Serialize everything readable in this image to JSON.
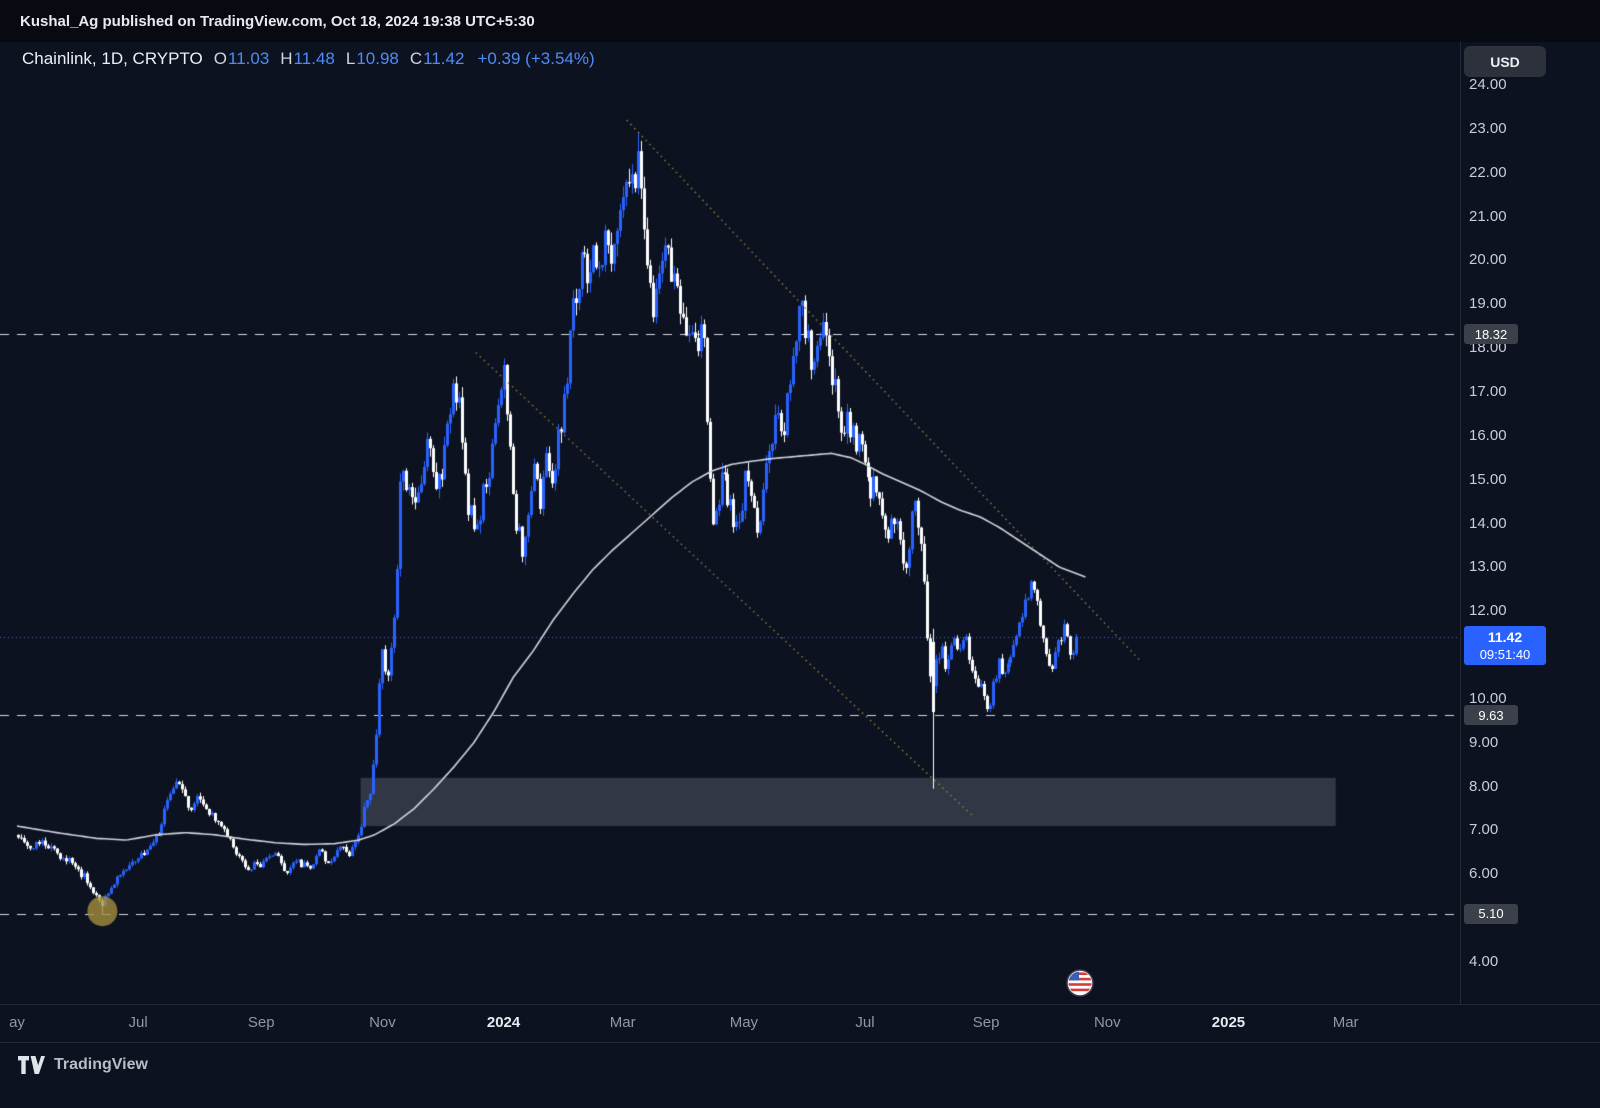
{
  "publish_bar": {
    "text": "Kushal_Ag published on TradingView.com, Oct 18, 2024 19:38 UTC+5:30"
  },
  "header": {
    "symbol": "Chainlink, 1D, CRYPTO",
    "ohlc": [
      {
        "label": "O",
        "value": "11.03"
      },
      {
        "label": "H",
        "value": "11.48"
      },
      {
        "label": "L",
        "value": "10.98"
      },
      {
        "label": "C",
        "value": "11.42"
      }
    ],
    "change": "+0.39 (+3.54%)"
  },
  "axis": {
    "currency_button": "USD",
    "price_ticks": [
      {
        "value": 24,
        "label": "24.00"
      },
      {
        "value": 23,
        "label": "23.00"
      },
      {
        "value": 22,
        "label": "22.00"
      },
      {
        "value": 21,
        "label": "21.00"
      },
      {
        "value": 20,
        "label": "20.00"
      },
      {
        "value": 19,
        "label": "19.00"
      },
      {
        "value": 18,
        "label": "18.00"
      },
      {
        "value": 17,
        "label": "17.00"
      },
      {
        "value": 16,
        "label": "16.00"
      },
      {
        "value": 15,
        "label": "15.00"
      },
      {
        "value": 14,
        "label": "14.00"
      },
      {
        "value": 13,
        "label": "13.00"
      },
      {
        "value": 12,
        "label": "12.00"
      },
      {
        "value": 10,
        "label": "10.00"
      },
      {
        "value": 9,
        "label": "9.00"
      },
      {
        "value": 8,
        "label": "8.00"
      },
      {
        "value": 7,
        "label": "7.00"
      },
      {
        "value": 6,
        "label": "6.00"
      },
      {
        "value": 4,
        "label": "4.00"
      }
    ],
    "time_ticks": [
      {
        "label": "ay",
        "t": 0,
        "major": false
      },
      {
        "label": "Jul",
        "t": 61,
        "major": false
      },
      {
        "label": "Sep",
        "t": 123,
        "major": false
      },
      {
        "label": "Nov",
        "t": 184,
        "major": false
      },
      {
        "label": "2024",
        "t": 245,
        "major": true
      },
      {
        "label": "Mar",
        "t": 305,
        "major": false
      },
      {
        "label": "May",
        "t": 366,
        "major": false
      },
      {
        "label": "Jul",
        "t": 427,
        "major": false
      },
      {
        "label": "Sep",
        "t": 488,
        "major": false
      },
      {
        "label": "Nov",
        "t": 549,
        "major": false
      },
      {
        "label": "2025",
        "t": 610,
        "major": true
      },
      {
        "label": "Mar",
        "t": 669,
        "major": false
      }
    ]
  },
  "last_price": {
    "value": "11.42",
    "countdown": "09:51:40",
    "price": 11.42
  },
  "footer": {
    "brand": "TradingView"
  },
  "chart_data": {
    "type": "candlestick",
    "symbol": "Chainlink",
    "interval": "1D",
    "exchange": "CRYPTO",
    "quote_currency": "USD",
    "visible_price_range": [
      3.0,
      25.0
    ],
    "time_unit": "days_from_left_edge_May_2023_to_Mar_2025",
    "last_candle": {
      "o": 11.03,
      "h": 11.48,
      "l": 10.98,
      "c": 11.42,
      "change": 0.39,
      "change_pct": 3.54
    },
    "levels": [
      {
        "price": 18.32,
        "label": "18.32",
        "style": "dashed"
      },
      {
        "price": 9.63,
        "label": "9.63",
        "style": "dashed"
      },
      {
        "price": 5.1,
        "label": "5.10",
        "style": "dashed"
      }
    ],
    "zone": {
      "t_start": 173,
      "t_end": 664,
      "price_top": 8.2,
      "price_bottom": 7.1
    },
    "trendlines": [
      {
        "from": [
          307,
          23.2
        ],
        "to": [
          565,
          10.9
        ],
        "style": "dotted"
      },
      {
        "from": [
          231,
          17.9
        ],
        "to": [
          482,
          7.3
        ],
        "style": "dotted"
      }
    ],
    "marker": {
      "t": 43,
      "price": 5.16,
      "r": 15
    },
    "event_marker": {
      "t": 535,
      "icon": "us-flag"
    },
    "key_points": [
      {
        "t": 43,
        "l": 5.1
      },
      {
        "t": 313,
        "h": 22.9
      },
      {
        "t": 461,
        "o": 11.3,
        "h": 11.6,
        "l": 7.95,
        "c": 9.7
      }
    ],
    "price_waypoints": [
      [
        0,
        6.9
      ],
      [
        8,
        6.6
      ],
      [
        15,
        6.75
      ],
      [
        22,
        6.45
      ],
      [
        30,
        6.2
      ],
      [
        38,
        5.75
      ],
      [
        43,
        5.3
      ],
      [
        47,
        5.65
      ],
      [
        53,
        6.1
      ],
      [
        60,
        6.35
      ],
      [
        66,
        6.5
      ],
      [
        72,
        6.9
      ],
      [
        78,
        7.9
      ],
      [
        83,
        8.05
      ],
      [
        88,
        7.5
      ],
      [
        93,
        7.75
      ],
      [
        99,
        7.3
      ],
      [
        105,
        7.05
      ],
      [
        110,
        6.6
      ],
      [
        116,
        6.15
      ],
      [
        123,
        6.25
      ],
      [
        130,
        6.45
      ],
      [
        136,
        6.05
      ],
      [
        142,
        6.3
      ],
      [
        148,
        6.15
      ],
      [
        153,
        6.5
      ],
      [
        158,
        6.25
      ],
      [
        163,
        6.6
      ],
      [
        168,
        6.45
      ],
      [
        173,
        7.05
      ],
      [
        176,
        7.5
      ],
      [
        179,
        8.1
      ],
      [
        182,
        9.6
      ],
      [
        184,
        11.1
      ],
      [
        187,
        10.4
      ],
      [
        190,
        11.7
      ],
      [
        192,
        13.1
      ],
      [
        194,
        15.9
      ],
      [
        196,
        15.0
      ],
      [
        199,
        14.3
      ],
      [
        203,
        14.9
      ],
      [
        207,
        15.8
      ],
      [
        211,
        14.7
      ],
      [
        215,
        15.2
      ],
      [
        219,
        16.6
      ],
      [
        222,
        17.1
      ],
      [
        225,
        16.0
      ],
      [
        228,
        14.4
      ],
      [
        232,
        13.9
      ],
      [
        236,
        14.8
      ],
      [
        240,
        15.6
      ],
      [
        243,
        16.9
      ],
      [
        246,
        17.4
      ],
      [
        249,
        15.8
      ],
      [
        252,
        14.0
      ],
      [
        255,
        13.4
      ],
      [
        258,
        14.4
      ],
      [
        261,
        15.3
      ],
      [
        264,
        14.6
      ],
      [
        267,
        15.5
      ],
      [
        270,
        14.9
      ],
      [
        273,
        15.9
      ],
      [
        276,
        16.6
      ],
      [
        279,
        18.3
      ],
      [
        283,
        19.6
      ],
      [
        286,
        20.5
      ],
      [
        289,
        19.5
      ],
      [
        292,
        20.3
      ],
      [
        295,
        19.8
      ],
      [
        298,
        20.6
      ],
      [
        301,
        20.1
      ],
      [
        304,
        21.3
      ],
      [
        307,
        21.9
      ],
      [
        310,
        21.4
      ],
      [
        313,
        22.4
      ],
      [
        316,
        20.8
      ],
      [
        319,
        19.2
      ],
      [
        322,
        18.8
      ],
      [
        325,
        19.9
      ],
      [
        328,
        20.6
      ],
      [
        331,
        19.6
      ],
      [
        334,
        19.0
      ],
      [
        337,
        18.3
      ],
      [
        340,
        18.9
      ],
      [
        343,
        17.9
      ],
      [
        346,
        18.5
      ],
      [
        348,
        16.6
      ],
      [
        350,
        14.4
      ],
      [
        353,
        14.0
      ],
      [
        356,
        15.3
      ],
      [
        359,
        14.5
      ],
      [
        362,
        13.9
      ],
      [
        365,
        14.3
      ],
      [
        368,
        15.0
      ],
      [
        371,
        14.2
      ],
      [
        374,
        13.8
      ],
      [
        377,
        14.9
      ],
      [
        380,
        15.6
      ],
      [
        383,
        16.4
      ],
      [
        386,
        16.1
      ],
      [
        389,
        16.9
      ],
      [
        392,
        17.8
      ],
      [
        395,
        18.9
      ],
      [
        398,
        18.4
      ],
      [
        401,
        17.3
      ],
      [
        404,
        18.0
      ],
      [
        407,
        18.5
      ],
      [
        410,
        17.6
      ],
      [
        413,
        16.8
      ],
      [
        416,
        16.1
      ],
      [
        419,
        16.5
      ],
      [
        422,
        15.8
      ],
      [
        425,
        16.3
      ],
      [
        428,
        15.4
      ],
      [
        431,
        14.6
      ],
      [
        434,
        15.1
      ],
      [
        437,
        14.2
      ],
      [
        440,
        13.6
      ],
      [
        443,
        14.3
      ],
      [
        446,
        13.4
      ],
      [
        449,
        13.1
      ],
      [
        452,
        14.4
      ],
      [
        455,
        13.9
      ],
      [
        458,
        12.2
      ],
      [
        460,
        10.9
      ],
      [
        461,
        9.7
      ],
      [
        463,
        10.6
      ],
      [
        466,
        11.2
      ],
      [
        469,
        10.7
      ],
      [
        472,
        11.3
      ],
      [
        475,
        10.9
      ],
      [
        478,
        11.4
      ],
      [
        481,
        10.8
      ],
      [
        484,
        10.4
      ],
      [
        487,
        10.1
      ],
      [
        490,
        9.8
      ],
      [
        492,
        10.3
      ],
      [
        495,
        10.8
      ],
      [
        498,
        10.5
      ],
      [
        501,
        11.0
      ],
      [
        504,
        11.6
      ],
      [
        507,
        12.0
      ],
      [
        510,
        12.4
      ],
      [
        513,
        12.6
      ],
      [
        516,
        11.8
      ],
      [
        519,
        11.2
      ],
      [
        522,
        10.6
      ],
      [
        525,
        11.3
      ],
      [
        528,
        11.7
      ],
      [
        531,
        11.1
      ],
      [
        534,
        11.1
      ],
      [
        535,
        11.42
      ]
    ],
    "ma_waypoints": [
      [
        0,
        7.1
      ],
      [
        20,
        6.95
      ],
      [
        40,
        6.82
      ],
      [
        55,
        6.78
      ],
      [
        70,
        6.9
      ],
      [
        85,
        6.95
      ],
      [
        100,
        6.9
      ],
      [
        115,
        6.8
      ],
      [
        130,
        6.72
      ],
      [
        145,
        6.68
      ],
      [
        160,
        6.7
      ],
      [
        172,
        6.78
      ],
      [
        180,
        6.9
      ],
      [
        190,
        7.15
      ],
      [
        200,
        7.5
      ],
      [
        210,
        7.95
      ],
      [
        220,
        8.45
      ],
      [
        230,
        9.0
      ],
      [
        240,
        9.7
      ],
      [
        250,
        10.5
      ],
      [
        260,
        11.1
      ],
      [
        270,
        11.8
      ],
      [
        280,
        12.4
      ],
      [
        290,
        12.95
      ],
      [
        300,
        13.4
      ],
      [
        310,
        13.8
      ],
      [
        320,
        14.2
      ],
      [
        330,
        14.6
      ],
      [
        340,
        14.95
      ],
      [
        350,
        15.2
      ],
      [
        360,
        15.35
      ],
      [
        370,
        15.42
      ],
      [
        380,
        15.48
      ],
      [
        390,
        15.52
      ],
      [
        400,
        15.56
      ],
      [
        410,
        15.6
      ],
      [
        420,
        15.5
      ],
      [
        427,
        15.35
      ],
      [
        435,
        15.15
      ],
      [
        445,
        14.95
      ],
      [
        455,
        14.75
      ],
      [
        465,
        14.5
      ],
      [
        475,
        14.3
      ],
      [
        485,
        14.15
      ],
      [
        495,
        13.9
      ],
      [
        505,
        13.6
      ],
      [
        515,
        13.3
      ],
      [
        525,
        13.0
      ],
      [
        538,
        12.78
      ]
    ],
    "noise_seed": 20241018,
    "colors": {
      "up": "#2962ff",
      "down": "#ffffff",
      "accent_text": "#4e8bf5",
      "ma": "#d1d4dc",
      "trendline": "#8b7c3c",
      "level": "rgba(240,242,247,0.9)",
      "zone": "rgba(148,154,166,0.27)",
      "last_price_line": "#2962ff",
      "marker_circle": "rgba(163,141,60,0.8)"
    }
  }
}
